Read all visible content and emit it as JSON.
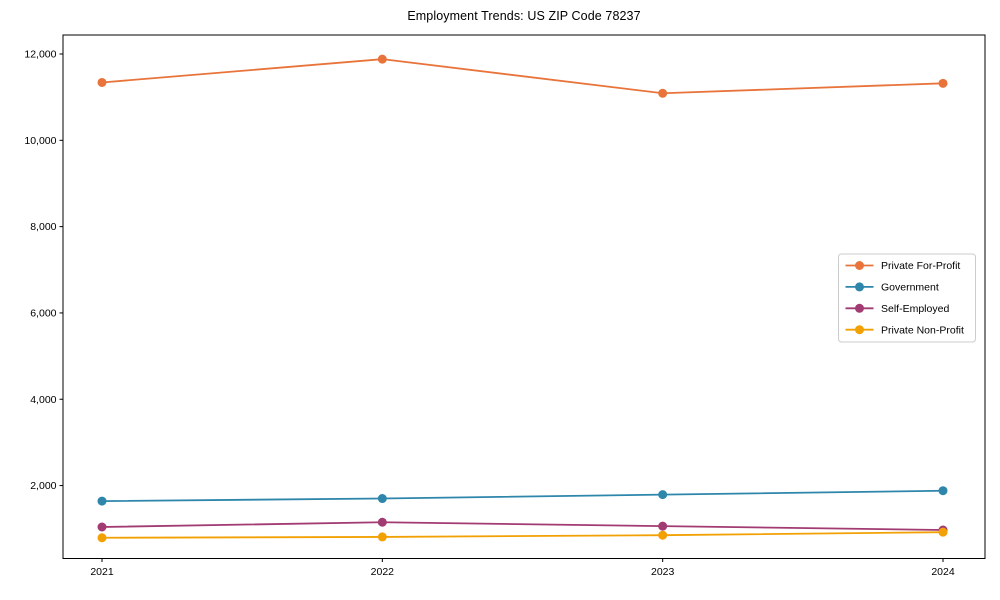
{
  "chart_data": {
    "type": "line",
    "title": "Employment Trends: US ZIP Code 78237",
    "xlabel": "",
    "ylabel": "",
    "x": [
      2021,
      2022,
      2023,
      2024
    ],
    "x_tick_labels": [
      "2021",
      "2022",
      "2023",
      "2024"
    ],
    "y_ticks": [
      {
        "value": 2000,
        "label": "2,000"
      },
      {
        "value": 4000,
        "label": "4,000"
      },
      {
        "value": 6000,
        "label": "6,000"
      },
      {
        "value": 8000,
        "label": "8,000"
      },
      {
        "value": 10000,
        "label": "10,000"
      },
      {
        "value": 12000,
        "label": "12,000"
      }
    ],
    "ylim": [
      310,
      12440
    ],
    "grid": false,
    "legend_position": "center right",
    "series": [
      {
        "name": "Private For-Profit",
        "color": "#E8743B",
        "values": [
          11340,
          11880,
          11090,
          11320
        ]
      },
      {
        "name": "Government",
        "color": "#2E86AB",
        "values": [
          1640,
          1700,
          1790,
          1880
        ]
      },
      {
        "name": "Self-Employed",
        "color": "#A23B72",
        "values": [
          1040,
          1150,
          1060,
          970
        ]
      },
      {
        "name": "Private Non-Profit",
        "color": "#F2A104",
        "values": [
          790,
          810,
          850,
          920
        ]
      }
    ]
  }
}
